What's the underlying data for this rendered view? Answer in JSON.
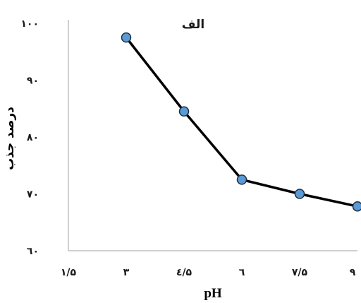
{
  "chart_data": {
    "type": "line",
    "title": "الف",
    "xlabel": "pH",
    "ylabel": "درصد جذب",
    "x_tick_labels": [
      "۱/۵",
      "۳",
      "٤/۵",
      "٦",
      "۷/۵",
      "۹"
    ],
    "y_tick_labels": [
      "٦۰",
      "۷۰",
      "۸۰",
      "۹۰",
      "۱۰۰"
    ],
    "x_ticks": [
      1.5,
      3,
      4.5,
      6,
      7.5,
      9
    ],
    "y_ticks": [
      60,
      70,
      80,
      90,
      100
    ],
    "xlim": [
      1.5,
      9
    ],
    "ylim": [
      60,
      100
    ],
    "grid": false,
    "series": [
      {
        "x": [
          3,
          4.5,
          6,
          7.5,
          9
        ],
        "y": [
          97.5,
          84.5,
          72.5,
          70.0,
          67.8
        ]
      }
    ],
    "colors": {
      "line": "#000000",
      "marker_fill": "#5b9bd5",
      "marker_stroke": "#1f2d3d",
      "axis": "#bfbfbf"
    }
  }
}
